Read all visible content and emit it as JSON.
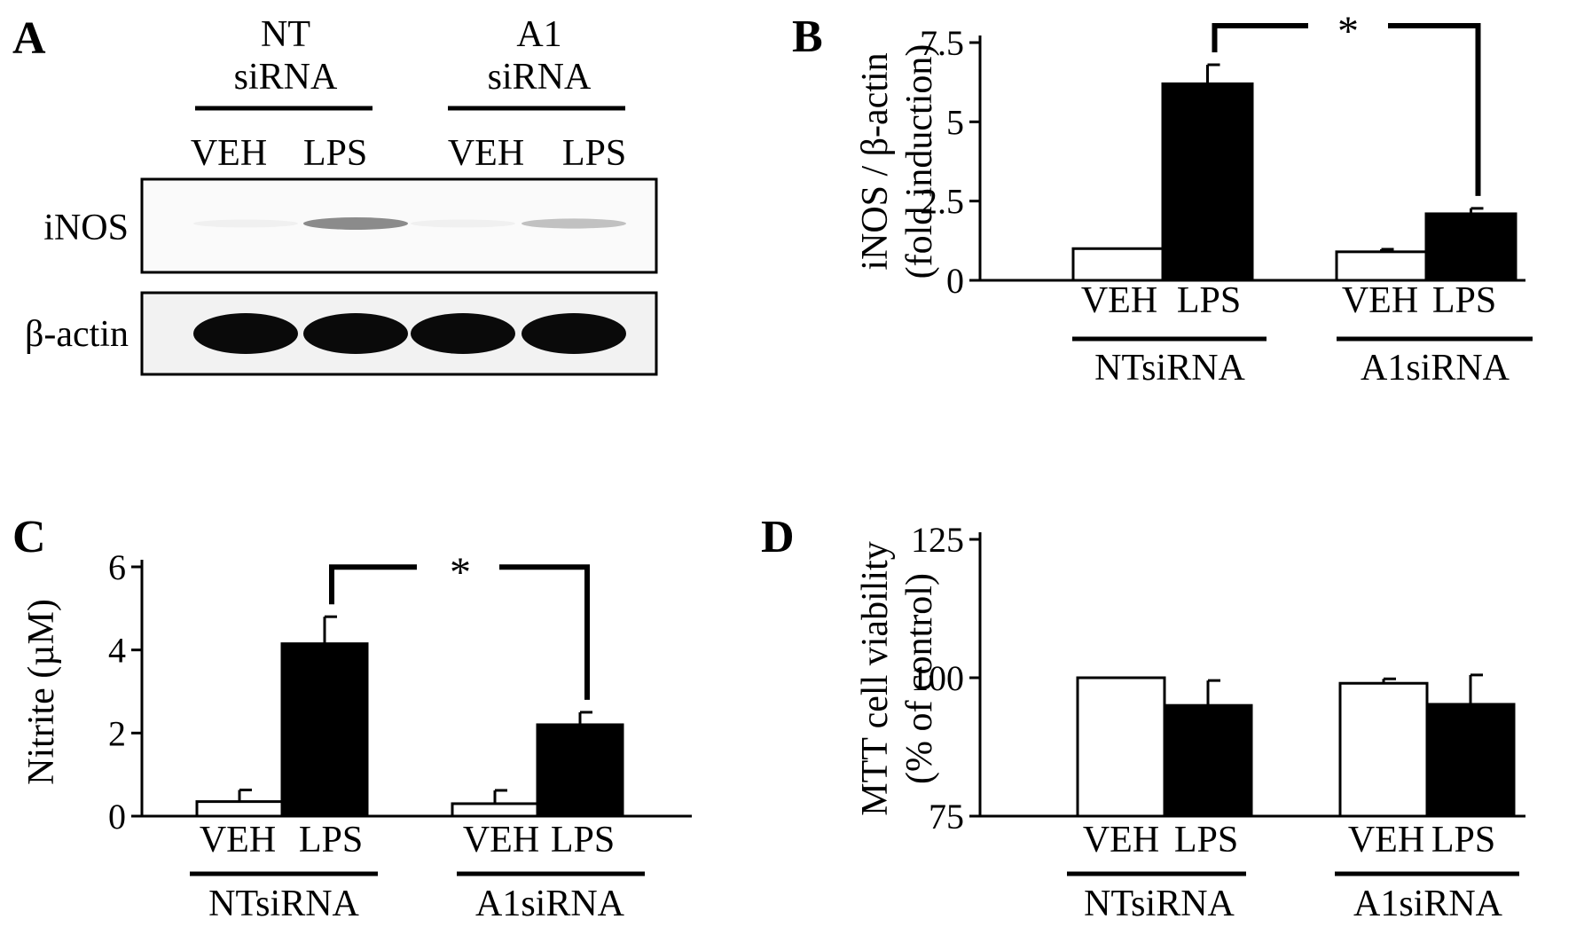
{
  "panel_a": {
    "letter": "A",
    "groups": [
      {
        "line1": "NT",
        "line2": "siRNA",
        "lanes": [
          "VEH",
          "LPS"
        ]
      },
      {
        "line1": "A1",
        "line2": "siRNA",
        "lanes": [
          "VEH",
          "LPS"
        ]
      }
    ],
    "rows": [
      {
        "label": "iNOS",
        "band_intensity": [
          0.02,
          0.45,
          0.02,
          0.22
        ]
      },
      {
        "label": "β-actin",
        "band_intensity": [
          1.0,
          1.0,
          1.0,
          1.0
        ]
      }
    ]
  },
  "chart_data": [
    {
      "panel": "B",
      "type": "bar",
      "ylabel_line1": "iNOS / β-actin",
      "ylabel_line2": "(fold induction)",
      "ylim": [
        0,
        7.5
      ],
      "yticks": [
        0,
        2.5,
        5,
        7.5
      ],
      "ytick_labels": [
        "0",
        "2.5",
        "5",
        "7.5"
      ],
      "groups": [
        {
          "name": "NTsiRNA",
          "bars": [
            {
              "label": "VEH",
              "value": 1.0,
              "error": 0.0,
              "fill": "#ffffff"
            },
            {
              "label": "LPS",
              "value": 6.2,
              "error": 0.6,
              "fill": "#000000"
            }
          ]
        },
        {
          "name": "A1siRNA",
          "bars": [
            {
              "label": "VEH",
              "value": 0.9,
              "error": 0.08,
              "fill": "#ffffff"
            },
            {
              "label": "LPS",
              "value": 2.1,
              "error": 0.17,
              "fill": "#000000"
            }
          ]
        }
      ],
      "significance": {
        "label": "*",
        "from": [
          0,
          1
        ],
        "to": [
          1,
          1
        ]
      }
    },
    {
      "panel": "C",
      "type": "bar",
      "ylabel_line1": "Nitrite (µM)",
      "ylabel_line2": "",
      "ylim": [
        0,
        6
      ],
      "yticks": [
        0,
        2,
        4,
        6
      ],
      "ytick_labels": [
        "0",
        "2",
        "4",
        "6"
      ],
      "groups": [
        {
          "name": "NTsiRNA",
          "bars": [
            {
              "label": "VEH",
              "value": 0.35,
              "error": 0.28,
              "fill": "#ffffff"
            },
            {
              "label": "LPS",
              "value": 4.15,
              "error": 0.65,
              "fill": "#000000"
            }
          ]
        },
        {
          "name": "A1siRNA",
          "bars": [
            {
              "label": "VEH",
              "value": 0.3,
              "error": 0.32,
              "fill": "#ffffff"
            },
            {
              "label": "LPS",
              "value": 2.2,
              "error": 0.3,
              "fill": "#000000"
            }
          ]
        }
      ],
      "significance": {
        "label": "*",
        "from": [
          0,
          1
        ],
        "to": [
          1,
          1
        ]
      }
    },
    {
      "panel": "D",
      "type": "bar",
      "ylabel_line1": "MTT cell viability",
      "ylabel_line2": "(% of control)",
      "ylim": [
        75,
        125
      ],
      "yticks": [
        75,
        100,
        125
      ],
      "ytick_labels": [
        "75",
        "100",
        "125"
      ],
      "groups": [
        {
          "name": "NTsiRNA",
          "bars": [
            {
              "label": "VEH",
              "value": 100,
              "error": 0,
              "fill": "#ffffff"
            },
            {
              "label": "LPS",
              "value": 95,
              "error": 4.5,
              "fill": "#000000"
            }
          ]
        },
        {
          "name": "A1siRNA",
          "bars": [
            {
              "label": "VEH",
              "value": 99,
              "error": 0.8,
              "fill": "#ffffff"
            },
            {
              "label": "LPS",
              "value": 95.2,
              "error": 5.3,
              "fill": "#000000"
            }
          ]
        }
      ],
      "significance": null
    }
  ]
}
